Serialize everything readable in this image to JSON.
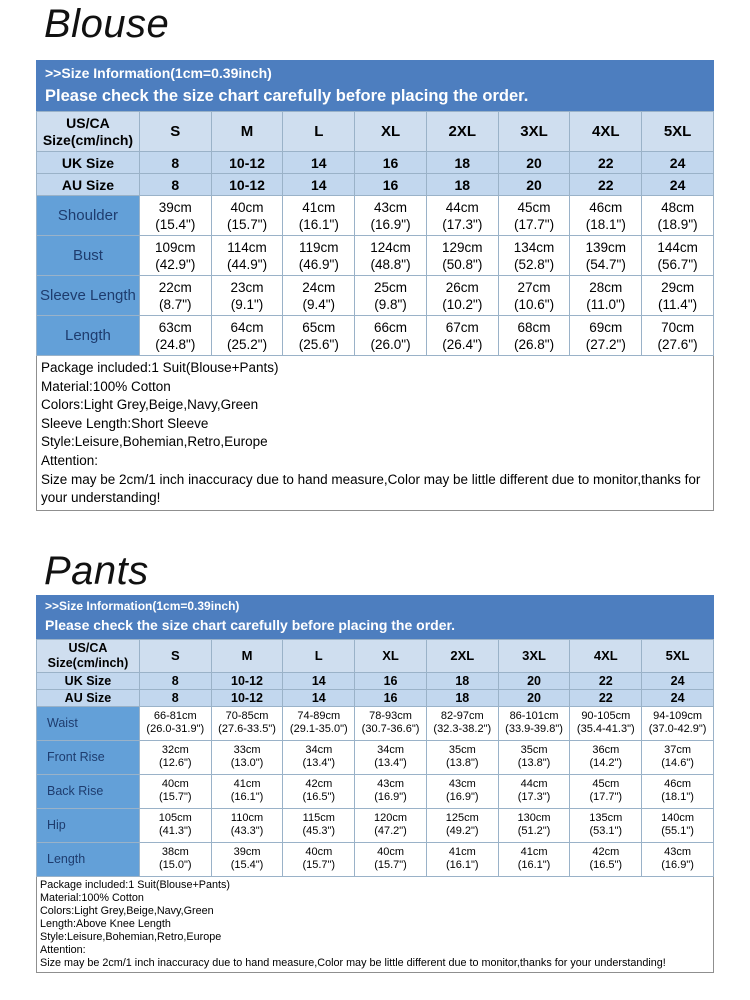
{
  "colors": {
    "banner_bg": "#4d7ebf",
    "banner_text": "#ffffff",
    "header_row_bg": "#cfdeef",
    "size_row_bg": "#c2d7ee",
    "label_cell_bg": "#63a0d8",
    "label_text": "#1e3c6e",
    "grid_border": "#9ab2c8"
  },
  "sections": [
    {
      "title": "Blouse",
      "banner": {
        "line1": ">>Size Information(1cm=0.39inch)",
        "line2": "Please check the size chart carefully before placing the order."
      },
      "table": {
        "corner_line1": "US/CA",
        "corner_line2": "Size(cm/inch)",
        "columns": [
          "S",
          "M",
          "L",
          "XL",
          "2XL",
          "3XL",
          "4XL",
          "5XL"
        ],
        "size_rows": [
          {
            "label": "UK Size",
            "values": [
              "8",
              "10-12",
              "14",
              "16",
              "18",
              "20",
              "22",
              "24"
            ]
          },
          {
            "label": "AU Size",
            "values": [
              "8",
              "10-12",
              "14",
              "16",
              "18",
              "20",
              "22",
              "24"
            ]
          }
        ],
        "measure_rows": [
          {
            "label": "Shoulder",
            "cells": [
              [
                "39cm",
                "(15.4\")"
              ],
              [
                "40cm",
                "(15.7\")"
              ],
              [
                "41cm",
                "(16.1\")"
              ],
              [
                "43cm",
                "(16.9\")"
              ],
              [
                "44cm",
                "(17.3\")"
              ],
              [
                "45cm",
                "(17.7\")"
              ],
              [
                "46cm",
                "(18.1\")"
              ],
              [
                "48cm",
                "(18.9\")"
              ]
            ]
          },
          {
            "label": "Bust",
            "cells": [
              [
                "109cm",
                "(42.9\")"
              ],
              [
                "114cm",
                "(44.9\")"
              ],
              [
                "119cm",
                "(46.9\")"
              ],
              [
                "124cm",
                "(48.8\")"
              ],
              [
                "129cm",
                "(50.8\")"
              ],
              [
                "134cm",
                "(52.8\")"
              ],
              [
                "139cm",
                "(54.7\")"
              ],
              [
                "144cm",
                "(56.7\")"
              ]
            ]
          },
          {
            "label": "Sleeve Length",
            "cells": [
              [
                "22cm",
                "(8.7\")"
              ],
              [
                "23cm",
                "(9.1\")"
              ],
              [
                "24cm",
                "(9.4\")"
              ],
              [
                "25cm",
                "(9.8\")"
              ],
              [
                "26cm",
                "(10.2\")"
              ],
              [
                "27cm",
                "(10.6\")"
              ],
              [
                "28cm",
                "(11.0\")"
              ],
              [
                "29cm",
                "(11.4\")"
              ]
            ]
          },
          {
            "label": "Length",
            "cells": [
              [
                "63cm",
                "(24.8\")"
              ],
              [
                "64cm",
                "(25.2\")"
              ],
              [
                "65cm",
                "(25.6\")"
              ],
              [
                "66cm",
                "(26.0\")"
              ],
              [
                "67cm",
                "(26.4\")"
              ],
              [
                "68cm",
                "(26.8\")"
              ],
              [
                "69cm",
                "(27.2\")"
              ],
              [
                "70cm",
                "(27.6\")"
              ]
            ]
          }
        ]
      },
      "notes": [
        "Package included:1 Suit(Blouse+Pants)",
        "Material:100% Cotton",
        "Colors:Light Grey,Beige,Navy,Green",
        "Sleeve Length:Short Sleeve",
        "Style:Leisure,Bohemian,Retro,Europe",
        "Attention:",
        "Size may be 2cm/1 inch inaccuracy due to hand measure,Color may be little different due to monitor,thanks for your understanding!"
      ]
    },
    {
      "title": "Pants",
      "banner": {
        "line1": ">>Size Information(1cm=0.39inch)",
        "line2": "Please check the size chart carefully before placing the order."
      },
      "table": {
        "corner_line1": "US/CA",
        "corner_line2": "Size(cm/inch)",
        "columns": [
          "S",
          "M",
          "L",
          "XL",
          "2XL",
          "3XL",
          "4XL",
          "5XL"
        ],
        "size_rows": [
          {
            "label": "UK Size",
            "values": [
              "8",
              "10-12",
              "14",
              "16",
              "18",
              "20",
              "22",
              "24"
            ]
          },
          {
            "label": "AU Size",
            "values": [
              "8",
              "10-12",
              "14",
              "16",
              "18",
              "20",
              "22",
              "24"
            ]
          }
        ],
        "measure_rows": [
          {
            "label": "Waist",
            "cells": [
              [
                "66-81cm",
                "(26.0-31.9\")"
              ],
              [
                "70-85cm",
                "(27.6-33.5\")"
              ],
              [
                "74-89cm",
                "(29.1-35.0\")"
              ],
              [
                "78-93cm",
                "(30.7-36.6\")"
              ],
              [
                "82-97cm",
                "(32.3-38.2\")"
              ],
              [
                "86-101cm",
                "(33.9-39.8\")"
              ],
              [
                "90-105cm",
                "(35.4-41.3\")"
              ],
              [
                "94-109cm",
                "(37.0-42.9\")"
              ]
            ]
          },
          {
            "label": "Front Rise",
            "cells": [
              [
                "32cm",
                "(12.6\")"
              ],
              [
                "33cm",
                "(13.0\")"
              ],
              [
                "34cm",
                "(13.4\")"
              ],
              [
                "34cm",
                "(13.4\")"
              ],
              [
                "35cm",
                "(13.8\")"
              ],
              [
                "35cm",
                "(13.8\")"
              ],
              [
                "36cm",
                "(14.2\")"
              ],
              [
                "37cm",
                "(14.6\")"
              ]
            ]
          },
          {
            "label": "Back Rise",
            "cells": [
              [
                "40cm",
                "(15.7\")"
              ],
              [
                "41cm",
                "(16.1\")"
              ],
              [
                "42cm",
                "(16.5\")"
              ],
              [
                "43cm",
                "(16.9\")"
              ],
              [
                "43cm",
                "(16.9\")"
              ],
              [
                "44cm",
                "(17.3\")"
              ],
              [
                "45cm",
                "(17.7\")"
              ],
              [
                "46cm",
                "(18.1\")"
              ]
            ]
          },
          {
            "label": "Hip",
            "cells": [
              [
                "105cm",
                "(41.3\")"
              ],
              [
                "110cm",
                "(43.3\")"
              ],
              [
                "115cm",
                "(45.3\")"
              ],
              [
                "120cm",
                "(47.2\")"
              ],
              [
                "125cm",
                "(49.2\")"
              ],
              [
                "130cm",
                "(51.2\")"
              ],
              [
                "135cm",
                "(53.1\")"
              ],
              [
                "140cm",
                "(55.1\")"
              ]
            ]
          },
          {
            "label": "Length",
            "cells": [
              [
                "38cm",
                "(15.0\")"
              ],
              [
                "39cm",
                "(15.4\")"
              ],
              [
                "40cm",
                "(15.7\")"
              ],
              [
                "40cm",
                "(15.7\")"
              ],
              [
                "41cm",
                "(16.1\")"
              ],
              [
                "41cm",
                "(16.1\")"
              ],
              [
                "42cm",
                "(16.5\")"
              ],
              [
                "43cm",
                "(16.9\")"
              ]
            ]
          }
        ]
      },
      "notes": [
        "Package included:1 Suit(Blouse+Pants)",
        "Material:100% Cotton",
        "Colors:Light Grey,Beige,Navy,Green",
        "Length:Above Knee Length",
        "Style:Leisure,Bohemian,Retro,Europe",
        "Attention:",
        "Size may be 2cm/1 inch inaccuracy due to hand measure,Color may be little different due to monitor,thanks for your understanding!"
      ]
    }
  ]
}
